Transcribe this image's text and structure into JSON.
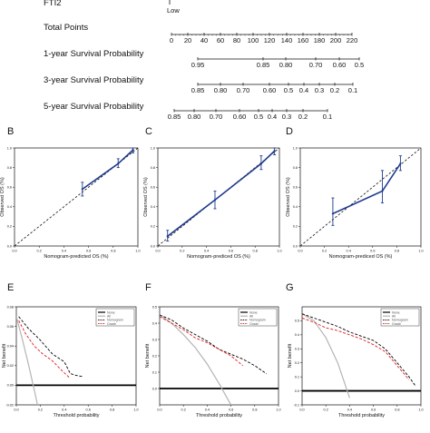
{
  "nomogram": {
    "top_label": "FTI2",
    "top_sublabel": "Low",
    "rows": [
      {
        "name": "Total Points",
        "ticks": [
          "0",
          "20",
          "40",
          "60",
          "80",
          "100",
          "120",
          "140",
          "160",
          "180",
          "200",
          "220"
        ],
        "values": [
          0,
          20,
          40,
          60,
          80,
          100,
          120,
          140,
          160,
          180,
          200,
          220
        ],
        "domain": [
          0,
          220
        ]
      },
      {
        "name": "1-year Survival Probability",
        "ticks": [
          "0.95",
          "0.85",
          "0.80",
          "0.70",
          "0.60",
          "0.5"
        ],
        "values": [
          0.95,
          0.85,
          0.8,
          0.7,
          0.6,
          0.5
        ]
      },
      {
        "name": "3-year Survival Probability",
        "ticks": [
          "0.85",
          "0.80",
          "0.70",
          "0.60",
          "0.5",
          "0.4",
          "0.3",
          "0.2",
          "0.1"
        ],
        "values": [
          0.85,
          0.8,
          0.7,
          0.6,
          0.5,
          0.4,
          0.3,
          0.2,
          0.1
        ]
      },
      {
        "name": "5-year Survival Probability",
        "ticks": [
          "0.85",
          "0.80",
          "0.70",
          "0.60",
          "0.5",
          "0.4",
          "0.3",
          "0.2",
          "0.1"
        ],
        "values": [
          0.85,
          0.8,
          0.7,
          0.6,
          0.5,
          0.4,
          0.3,
          0.2,
          0.1
        ]
      }
    ]
  },
  "chart_data": [
    {
      "panel": "B",
      "type": "line",
      "xlabel": "Nomogram-predicted OS (%)",
      "ylabel": "Observed OS (%)",
      "xlim": [
        0,
        1
      ],
      "ylim": [
        0,
        1
      ],
      "x_ticks": [
        "0.0",
        "0.2",
        "0.4",
        "0.6",
        "0.8",
        "1.0"
      ],
      "y_ticks": [
        "0.0",
        "0.2",
        "0.4",
        "0.6",
        "0.8",
        "1.0"
      ],
      "diagonal": true,
      "points": [
        {
          "x": 0.55,
          "y": 0.58,
          "lo": 0.51,
          "hi": 0.65
        },
        {
          "x": 0.84,
          "y": 0.84,
          "lo": 0.8,
          "hi": 0.89
        },
        {
          "x": 0.96,
          "y": 0.98,
          "lo": 0.95,
          "hi": 1.0
        }
      ]
    },
    {
      "panel": "C",
      "type": "line",
      "xlabel": "Nomogram-prediced OS (%)",
      "ylabel": "Observed OS (%)",
      "xlim": [
        0,
        1
      ],
      "ylim": [
        0,
        1
      ],
      "x_ticks": [
        "0.0",
        "0.2",
        "0.4",
        "0.6",
        "0.8",
        "1.0"
      ],
      "y_ticks": [
        "0.0",
        "0.2",
        "0.4",
        "0.6",
        "0.8",
        "1.0"
      ],
      "diagonal": true,
      "points": [
        {
          "x": 0.08,
          "y": 0.1,
          "lo": 0.05,
          "hi": 0.16
        },
        {
          "x": 0.47,
          "y": 0.47,
          "lo": 0.38,
          "hi": 0.56
        },
        {
          "x": 0.85,
          "y": 0.84,
          "lo": 0.78,
          "hi": 0.92
        },
        {
          "x": 0.96,
          "y": 0.97,
          "lo": 0.93,
          "hi": 1.0
        }
      ]
    },
    {
      "panel": "D",
      "type": "line",
      "xlabel": "Nomogram-prediced OS (%)",
      "ylabel": "Observed OS (%)",
      "xlim": [
        0,
        1
      ],
      "ylim": [
        0,
        1
      ],
      "x_ticks": [
        "0.0",
        "0.2",
        "0.4",
        "0.6",
        "0.8",
        "1.0"
      ],
      "y_ticks": [
        "0.0",
        "0.2",
        "0.4",
        "0.6",
        "0.8",
        "1.0"
      ],
      "diagonal": true,
      "points": [
        {
          "x": 0.27,
          "y": 0.33,
          "lo": 0.21,
          "hi": 0.49
        },
        {
          "x": 0.68,
          "y": 0.56,
          "lo": 0.44,
          "hi": 0.77
        },
        {
          "x": 0.83,
          "y": 0.84,
          "lo": 0.77,
          "hi": 0.92
        }
      ]
    },
    {
      "panel": "E",
      "type": "line",
      "xlabel": "Threshold probability",
      "ylabel": "Net benefit",
      "xlim": [
        0,
        1
      ],
      "ylim": [
        -0.02,
        0.08
      ],
      "x_ticks": [
        "0.0",
        "0.2",
        "0.4",
        "0.6",
        "0.8",
        "1.0"
      ],
      "y_ticks": [
        "-0.02",
        "0.00",
        "0.02",
        "0.04",
        "0.06",
        "0.08"
      ],
      "legend": [
        "None",
        "All",
        "Nomogram",
        "Grade"
      ],
      "series": [
        {
          "name": "None",
          "x": [
            0,
            1
          ],
          "y": [
            0,
            0
          ]
        },
        {
          "name": "All",
          "x": [
            0,
            0.05,
            0.1,
            0.15,
            0.2
          ],
          "y": [
            0.07,
            0.047,
            0.022,
            -0.005,
            -0.033
          ]
        },
        {
          "name": "Nomogram",
          "x": [
            0.02,
            0.1,
            0.2,
            0.3,
            0.4,
            0.45,
            0.5,
            0.55
          ],
          "y": [
            0.07,
            0.058,
            0.046,
            0.032,
            0.024,
            0.012,
            0.01,
            0.009
          ]
        },
        {
          "name": "Grade",
          "x": [
            0.02,
            0.08,
            0.15,
            0.22,
            0.3,
            0.38,
            0.45
          ],
          "y": [
            0.066,
            0.052,
            0.04,
            0.032,
            0.025,
            0.015,
            0.007
          ]
        }
      ]
    },
    {
      "panel": "F",
      "type": "line",
      "xlabel": "Threshold probability",
      "ylabel": "Net benefit",
      "xlim": [
        0,
        1
      ],
      "ylim": [
        -0.1,
        0.5
      ],
      "x_ticks": [
        "0.0",
        "0.2",
        "0.4",
        "0.6",
        "0.8",
        "1.0"
      ],
      "y_ticks": [
        "0.0",
        "0.1",
        "0.2",
        "0.3",
        "0.4",
        "0.5"
      ],
      "legend": [
        "None",
        "All",
        "Nomogram",
        "Grade"
      ],
      "series": [
        {
          "name": "None",
          "x": [
            0,
            1
          ],
          "y": [
            0,
            0
          ]
        },
        {
          "name": "All",
          "x": [
            0,
            0.1,
            0.2,
            0.3,
            0.4,
            0.5,
            0.6
          ],
          "y": [
            0.45,
            0.4,
            0.33,
            0.25,
            0.15,
            0.03,
            -0.1
          ]
        },
        {
          "name": "Nomogram",
          "x": [
            0,
            0.1,
            0.2,
            0.3,
            0.4,
            0.5,
            0.6,
            0.7,
            0.8,
            0.9
          ],
          "y": [
            0.45,
            0.42,
            0.37,
            0.33,
            0.29,
            0.24,
            0.21,
            0.18,
            0.14,
            0.09
          ]
        },
        {
          "name": "Grade",
          "x": [
            0,
            0.1,
            0.2,
            0.3,
            0.4,
            0.5,
            0.6,
            0.7
          ],
          "y": [
            0.44,
            0.4,
            0.36,
            0.31,
            0.28,
            0.24,
            0.2,
            0.14
          ]
        }
      ]
    },
    {
      "panel": "G",
      "type": "line",
      "xlabel": "Threshold probability",
      "ylabel": "Net benefit",
      "xlim": [
        0,
        1
      ],
      "ylim": [
        -0.1,
        0.6
      ],
      "x_ticks": [
        "0.0",
        "0.2",
        "0.4",
        "0.6",
        "0.8",
        "1.0"
      ],
      "y_ticks": [
        "-0.1",
        "0.0",
        "0.1",
        "0.2",
        "0.3",
        "0.4",
        "0.5"
      ],
      "legend": [
        "None",
        "All",
        "Nomogram",
        "Grade"
      ],
      "series": [
        {
          "name": "None",
          "x": [
            0,
            1
          ],
          "y": [
            0,
            0
          ]
        },
        {
          "name": "All",
          "x": [
            0,
            0.1,
            0.2,
            0.3,
            0.4
          ],
          "y": [
            0.55,
            0.5,
            0.38,
            0.2,
            -0.05
          ]
        },
        {
          "name": "Nomogram",
          "x": [
            0,
            0.1,
            0.2,
            0.3,
            0.4,
            0.5,
            0.6,
            0.7,
            0.8,
            0.9,
            0.95
          ],
          "y": [
            0.55,
            0.52,
            0.49,
            0.46,
            0.42,
            0.39,
            0.36,
            0.3,
            0.2,
            0.1,
            0.04
          ]
        },
        {
          "name": "Grade",
          "x": [
            0,
            0.1,
            0.2,
            0.3,
            0.4,
            0.5,
            0.6,
            0.7,
            0.8,
            0.9
          ],
          "y": [
            0.52,
            0.49,
            0.45,
            0.43,
            0.4,
            0.37,
            0.33,
            0.28,
            0.18,
            0.08
          ]
        }
      ]
    }
  ],
  "colors": {
    "calibration": "#1f3b8f",
    "none": "#000000",
    "all": "#b4b4b4",
    "nomogram": "#000000",
    "grade": "#e31a1c"
  }
}
